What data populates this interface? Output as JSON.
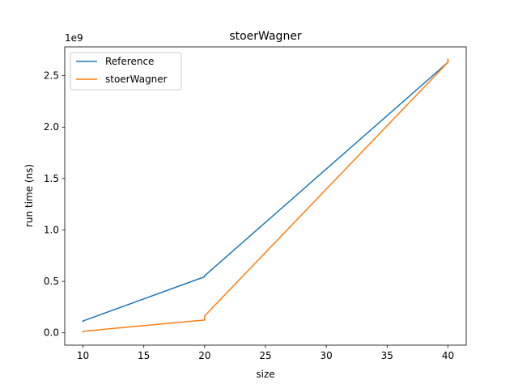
{
  "chart_data": {
    "type": "line",
    "title": "stoerWagner",
    "xlabel": "size",
    "ylabel": "run time (ns)",
    "y_offset_label": "1e9",
    "xlim": [
      8.5,
      41.5
    ],
    "ylim": [
      -0.12,
      2.78
    ],
    "x_ticks": [
      10,
      15,
      20,
      25,
      30,
      35,
      40
    ],
    "x_tick_labels": [
      "10",
      "15",
      "20",
      "25",
      "30",
      "35",
      "40"
    ],
    "y_ticks": [
      0.0,
      0.5,
      1.0,
      1.5,
      2.0,
      2.5
    ],
    "y_tick_labels": [
      "0.0",
      "0.5",
      "1.0",
      "1.5",
      "2.0",
      "2.5"
    ],
    "legend_position": "top-left",
    "grid": false,
    "series": [
      {
        "name": "Reference",
        "color": "#1f77b4",
        "points": [
          [
            10,
            0.11
          ],
          [
            10,
            0.115
          ],
          [
            20,
            0.545
          ],
          [
            20,
            0.555
          ],
          [
            40,
            2.63
          ],
          [
            40,
            2.65
          ]
        ]
      },
      {
        "name": "stoerWagner",
        "color": "#ff7f0e",
        "points": [
          [
            10,
            0.01
          ],
          [
            10,
            0.015
          ],
          [
            20,
            0.125
          ],
          [
            20,
            0.165
          ],
          [
            40,
            2.63
          ],
          [
            40,
            2.66
          ]
        ]
      }
    ]
  }
}
